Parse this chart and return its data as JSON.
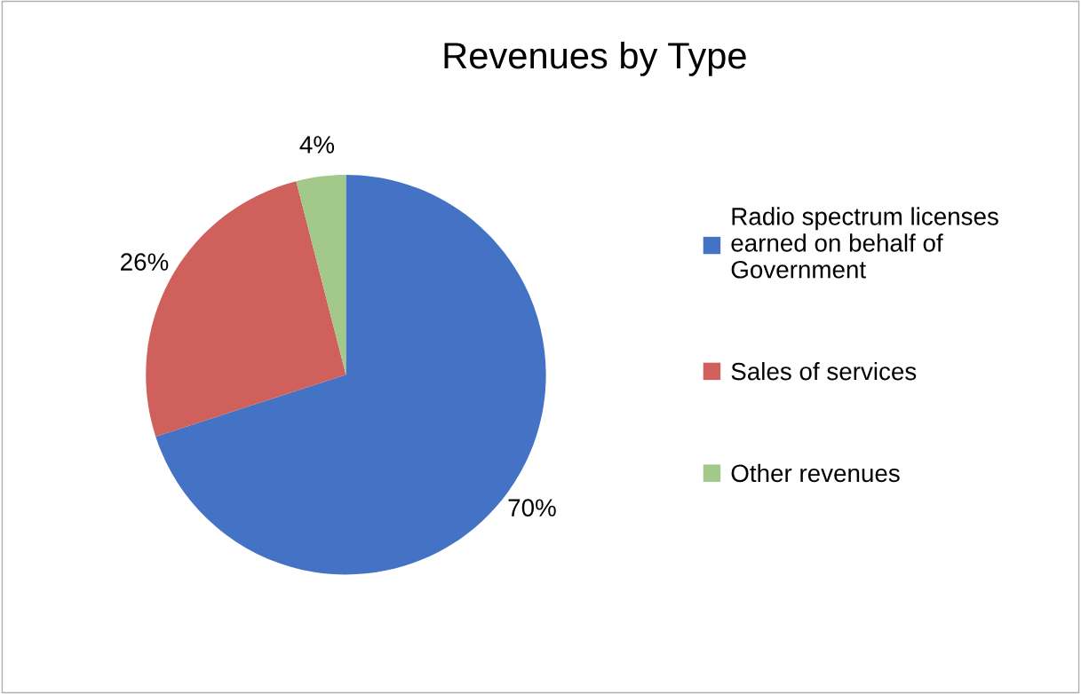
{
  "chart_data": {
    "type": "pie",
    "title": "Revenues by Type",
    "categories": [
      "Radio spectrum licenses earned on behalf of Government",
      "Sales of services",
      "Other revenues"
    ],
    "values": [
      70,
      26,
      4
    ],
    "value_labels": [
      "70%",
      "26%",
      "4%"
    ],
    "colors": [
      "#4472c4",
      "#d0605c",
      "#a3c98a"
    ],
    "legend": "right"
  }
}
